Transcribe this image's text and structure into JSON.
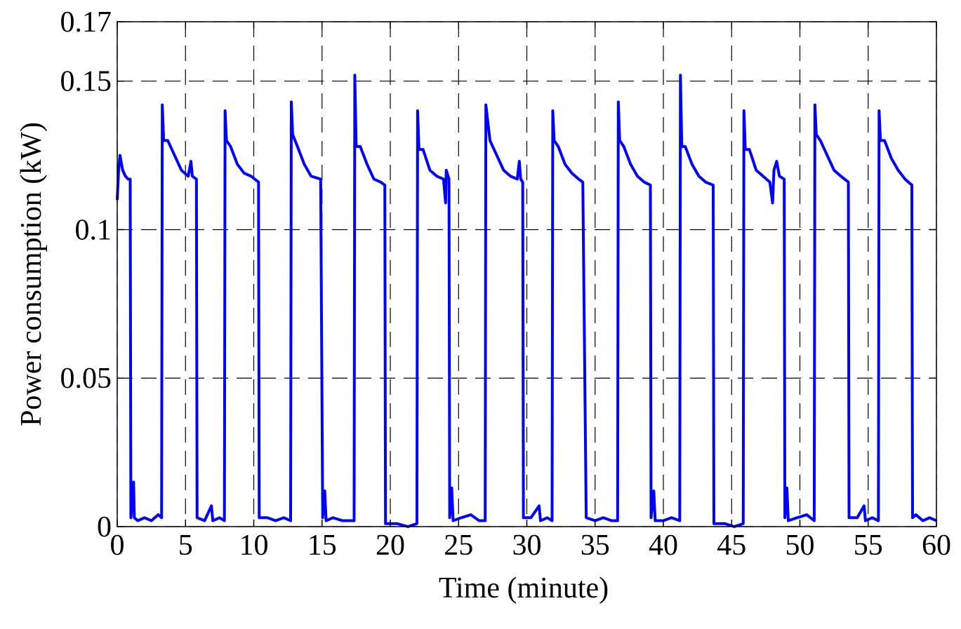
{
  "chart_data": {
    "type": "line",
    "xlabel": "Time (minute)",
    "ylabel": "Power consumption (kW)",
    "color": "#0000ff",
    "grid": true,
    "xlim": [
      0,
      60
    ],
    "ylim": [
      0,
      0.17
    ],
    "xticks": [
      0,
      5,
      10,
      15,
      20,
      25,
      30,
      35,
      40,
      45,
      50,
      55,
      60
    ],
    "yticks": [
      0,
      0.05,
      0.1,
      0.15,
      0.17
    ],
    "x": [
      0,
      0.1,
      0.2,
      0.4,
      0.6,
      0.8,
      0.95,
      1.0,
      1.2,
      1.25,
      1.5,
      2.0,
      2.5,
      3.0,
      3.25,
      3.3,
      3.4,
      3.7,
      4.2,
      4.7,
      5.2,
      5.4,
      5.5,
      5.8,
      5.85,
      6.4,
      6.9,
      7.0,
      7.5,
      7.85,
      7.9,
      8.0,
      8.3,
      8.8,
      9.3,
      9.8,
      10.35,
      10.4,
      11.0,
      11.6,
      12.2,
      12.7,
      12.75,
      12.85,
      13.2,
      13.7,
      14.2,
      14.9,
      15.05,
      15.2,
      15.3,
      15.8,
      16.5,
      17.35,
      17.4,
      17.5,
      17.8,
      18.3,
      18.8,
      19.3,
      19.6,
      19.65,
      20.5,
      21.3,
      21.95,
      22.0,
      22.1,
      22.4,
      22.9,
      23.4,
      23.9,
      24.05,
      24.1,
      24.3,
      24.35,
      24.5,
      24.6,
      25.2,
      25.9,
      26.5,
      26.95,
      27.0,
      27.1,
      27.3,
      27.8,
      28.3,
      28.8,
      29.3,
      29.45,
      29.55,
      29.7,
      29.75,
      30.3,
      30.9,
      31.0,
      31.5,
      31.85,
      31.9,
      32.0,
      32.3,
      32.8,
      33.3,
      33.8,
      34.1,
      34.35,
      35.0,
      35.6,
      36.2,
      36.65,
      36.7,
      36.8,
      37.1,
      37.6,
      38.1,
      38.6,
      39.05,
      39.1,
      39.3,
      39.4,
      40.0,
      40.6,
      41.2,
      41.25,
      41.35,
      41.6,
      42.1,
      42.6,
      43.1,
      43.65,
      43.7,
      44.5,
      45.2,
      45.85,
      45.9,
      46.0,
      46.3,
      46.8,
      47.3,
      47.8,
      48.0,
      48.1,
      48.3,
      48.5,
      48.85,
      48.9,
      49.05,
      49.15,
      49.8,
      50.5,
      51.05,
      51.1,
      51.2,
      51.5,
      52.0,
      52.5,
      53.0,
      53.55,
      53.6,
      54.2,
      54.7,
      54.8,
      55.3,
      55.75,
      55.8,
      55.9,
      56.2,
      56.7,
      57.2,
      57.7,
      58.2,
      58.25,
      58.5,
      59.0,
      59.5,
      60
    ],
    "values": [
      0.11,
      0.12,
      0.125,
      0.12,
      0.118,
      0.117,
      0.117,
      0.003,
      0.015,
      0.003,
      0.002,
      0.003,
      0.002,
      0.004,
      0.003,
      0.142,
      0.13,
      0.13,
      0.125,
      0.12,
      0.118,
      0.123,
      0.118,
      0.117,
      0.003,
      0.002,
      0.007,
      0.002,
      0.003,
      0.002,
      0.14,
      0.13,
      0.128,
      0.122,
      0.119,
      0.118,
      0.116,
      0.003,
      0.003,
      0.002,
      0.003,
      0.002,
      0.143,
      0.132,
      0.128,
      0.122,
      0.118,
      0.117,
      0.003,
      0.012,
      0.002,
      0.003,
      0.002,
      0.002,
      0.152,
      0.128,
      0.128,
      0.122,
      0.117,
      0.116,
      0.115,
      0.001,
      0.001,
      0,
      0.001,
      0.14,
      0.127,
      0.127,
      0.12,
      0.118,
      0.117,
      0.109,
      0.12,
      0.117,
      0.003,
      0.013,
      0.002,
      0.003,
      0.004,
      0.002,
      0.002,
      0.142,
      0.138,
      0.13,
      0.125,
      0.12,
      0.118,
      0.117,
      0.123,
      0.117,
      0.116,
      0.003,
      0.003,
      0.007,
      0.002,
      0.003,
      0.002,
      0.14,
      0.13,
      0.128,
      0.122,
      0.119,
      0.117,
      0.116,
      0.003,
      0.002,
      0.003,
      0.002,
      0.002,
      0.143,
      0.13,
      0.128,
      0.122,
      0.118,
      0.116,
      0.115,
      0.003,
      0.012,
      0.002,
      0.002,
      0.003,
      0.002,
      0.152,
      0.128,
      0.128,
      0.122,
      0.118,
      0.116,
      0.115,
      0.001,
      0.001,
      0,
      0.001,
      0.14,
      0.127,
      0.127,
      0.12,
      0.118,
      0.116,
      0.109,
      0.12,
      0.123,
      0.118,
      0.117,
      0.003,
      0.013,
      0.002,
      0.003,
      0.004,
      0.002,
      0.142,
      0.132,
      0.13,
      0.125,
      0.12,
      0.118,
      0.116,
      0.003,
      0.003,
      0.007,
      0.002,
      0.003,
      0.002,
      0.14,
      0.13,
      0.13,
      0.124,
      0.12,
      0.117,
      0.115,
      0.003,
      0.004,
      0.002,
      0.003,
      0.002
    ]
  }
}
